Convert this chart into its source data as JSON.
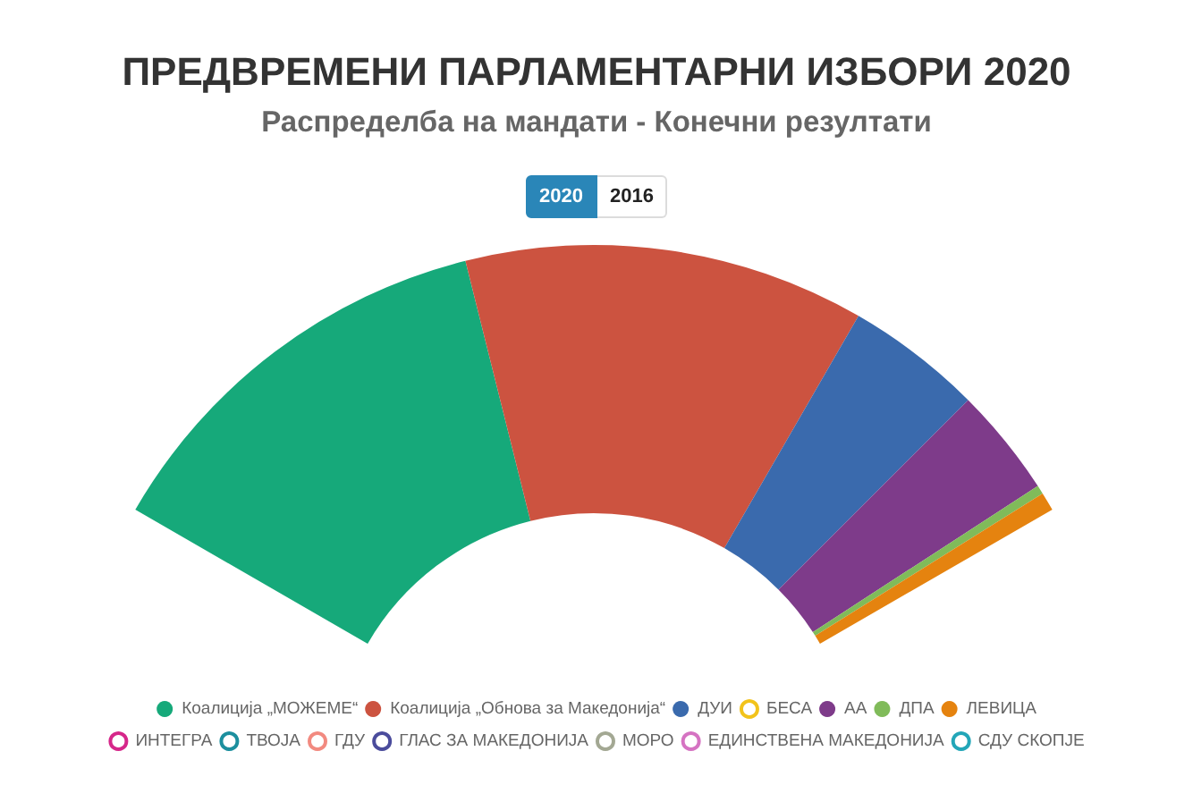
{
  "chart_data": {
    "type": "donut",
    "title": "ПРЕДВРЕМЕНИ ПАРЛАМЕНТАРНИ ИЗБОРИ 2020",
    "subtitle": "Распределба на мандати - Конечни резултати",
    "annotations": [
      "2020",
      "2016"
    ],
    "categories": [
      "Коалиција „МОЖЕМЕ“",
      "Коалиција „Обнова за Македонија“",
      "ДУИ",
      "БЕСА",
      "АА",
      "ДПА",
      "ЛЕВИЦА",
      "ИНТЕГРА",
      "ТВОЈА",
      "ГДУ",
      "ГЛАС ЗА МАКЕДОНИЈА",
      "МОРО",
      "ЕДИНСТВЕНА МАКЕДОНИЈА",
      "СДУ СКОПЈЕ"
    ],
    "values": [
      38.3,
      36.7,
      12.5,
      0,
      10,
      0.8,
      1.7,
      0,
      0,
      0,
      0,
      0,
      0,
      0
    ],
    "colors": [
      "#16a97a",
      "#cc5340",
      "#3a6aad",
      "#f2c31b",
      "#7e3b8a",
      "#80bb5a",
      "#e5830f",
      "#d6278a",
      "#1c8f9e",
      "#f28a80",
      "#4b4c9c",
      "#a3a893",
      "#d573c2",
      "#23a6b8"
    ],
    "legend": "bottom"
  }
}
